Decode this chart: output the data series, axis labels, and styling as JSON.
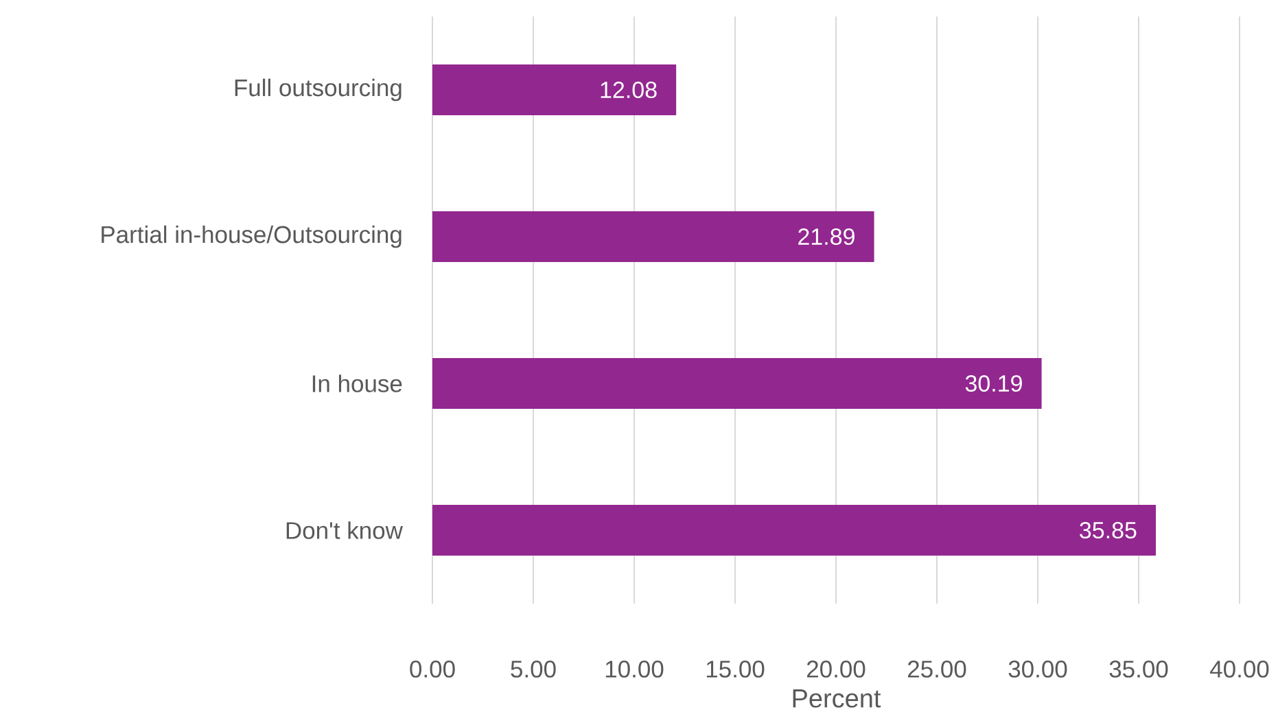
{
  "chart_data": {
    "type": "bar",
    "orientation": "horizontal",
    "xlabel": "Percent",
    "categories": [
      "Full outsourcing",
      "Partial in-house/Outsourcing",
      "In house",
      "Don't know"
    ],
    "values": [
      12.08,
      21.89,
      30.19,
      35.85
    ],
    "color": "#92278f",
    "data_labels": true,
    "xlim": [
      0,
      40
    ],
    "xticks": [
      {
        "value": 0,
        "label": "0.00"
      },
      {
        "value": 5,
        "label": "5.00"
      },
      {
        "value": 10,
        "label": "10.00"
      },
      {
        "value": 15,
        "label": "15.00"
      },
      {
        "value": 20,
        "label": "20.00"
      },
      {
        "value": 25,
        "label": "25.00"
      },
      {
        "value": 30,
        "label": "30.00"
      },
      {
        "value": 35,
        "label": "35.00"
      },
      {
        "value": 40,
        "label": "40.00"
      }
    ],
    "grid": "x"
  }
}
